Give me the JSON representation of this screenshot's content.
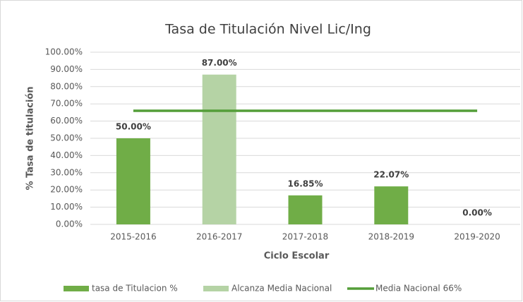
{
  "chart_data": {
    "type": "bar",
    "title": "Tasa de Titulación Nivel Lic/Ing",
    "x_label": "Ciclo Escolar",
    "y_label": "% Tasa de titulación",
    "categories": [
      "2015-2016",
      "2016-2017",
      "2017-2018",
      "2018-2019",
      "2019-2020"
    ],
    "series": [
      {
        "name": "tasa de Titulacion %",
        "color": "#70ad47",
        "type": "bar",
        "values": [
          50,
          null,
          16.85,
          22.07,
          0
        ],
        "value_labels": [
          "50.00%",
          null,
          "16.85%",
          "22.07%",
          "0.00%"
        ]
      },
      {
        "name": "Alcanza Media Nacional",
        "color": "#b5d3a5",
        "type": "bar",
        "values": [
          null,
          87,
          null,
          null,
          null
        ],
        "value_labels": [
          null,
          "87.00%",
          null,
          null,
          null
        ]
      },
      {
        "name": "Media Nacional 66%",
        "color": "#549e39",
        "type": "line",
        "values": [
          66,
          66,
          66,
          66,
          66
        ]
      }
    ],
    "ylim": [
      0,
      100
    ],
    "yticks": [
      {
        "value": 0,
        "label": "0.00%"
      },
      {
        "value": 10,
        "label": "10.00%"
      },
      {
        "value": 20,
        "label": "20.00%"
      },
      {
        "value": 30,
        "label": "30.00%"
      },
      {
        "value": 40,
        "label": "40.00%"
      },
      {
        "value": 50,
        "label": "50.00%"
      },
      {
        "value": 60,
        "label": "60.00%"
      },
      {
        "value": 70,
        "label": "70.00%"
      },
      {
        "value": 80,
        "label": "80.00%"
      },
      {
        "value": 90,
        "label": "90.00%"
      },
      {
        "value": 100,
        "label": "100.00%"
      }
    ],
    "grid": true,
    "legend": "bottom"
  }
}
